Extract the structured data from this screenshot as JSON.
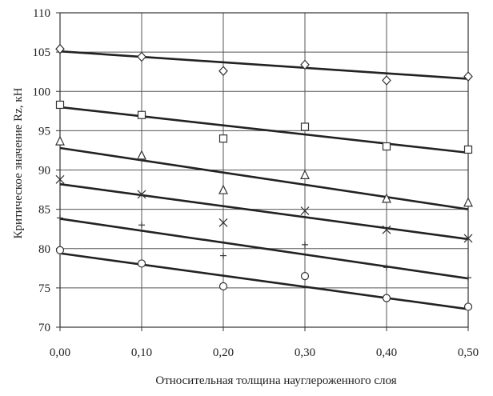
{
  "chart_data": {
    "type": "scatter",
    "title": "",
    "xlabel": "Относительная толщина науглероженного слоя",
    "ylabel": "Критическое значение Rz, кН",
    "xlim": [
      0,
      0.5
    ],
    "ylim": [
      70,
      110
    ],
    "x_ticks": [
      0,
      0.1,
      0.2,
      0.3,
      0.4,
      0.5
    ],
    "x_tick_labels": [
      "0,00",
      "0,10",
      "0,20",
      "0,30",
      "0,40",
      "0,50"
    ],
    "y_ticks": [
      70,
      75,
      80,
      85,
      90,
      95,
      100,
      105,
      110
    ],
    "y_tick_labels": [
      "70",
      "75",
      "80",
      "85",
      "90",
      "95",
      "100",
      "105",
      "110"
    ],
    "grid": true,
    "legend": "none",
    "series": [
      {
        "marker": "diamond",
        "x": [
          0,
          0.1,
          0.2,
          0.3,
          0.4,
          0.5
        ],
        "y": [
          105.4,
          104.4,
          102.6,
          103.4,
          101.4,
          101.9
        ],
        "trend": [
          105.1,
          101.6
        ]
      },
      {
        "marker": "square",
        "x": [
          0,
          0.1,
          0.2,
          0.3,
          0.4,
          0.5
        ],
        "y": [
          98.3,
          97.0,
          94.0,
          95.5,
          93.0,
          92.6
        ],
        "trend": [
          98.0,
          92.2
        ]
      },
      {
        "marker": "triangle",
        "x": [
          0,
          0.1,
          0.2,
          0.3,
          0.4,
          0.5
        ],
        "y": [
          93.6,
          91.8,
          87.4,
          89.3,
          86.3,
          85.8
        ],
        "trend": [
          92.8,
          85.0
        ]
      },
      {
        "marker": "cross",
        "x": [
          0,
          0.1,
          0.2,
          0.3,
          0.4,
          0.5
        ],
        "y": [
          88.8,
          86.9,
          83.3,
          84.8,
          82.4,
          81.3
        ],
        "trend": [
          88.2,
          81.2
        ]
      },
      {
        "marker": "plus",
        "x": [
          0,
          0.1,
          0.2,
          0.3,
          0.4,
          0.5
        ],
        "y": [
          83.9,
          83.0,
          79.1,
          80.5,
          77.6,
          76.3
        ],
        "trend": [
          83.8,
          76.2
        ]
      },
      {
        "marker": "circle",
        "x": [
          0,
          0.1,
          0.2,
          0.3,
          0.4,
          0.5
        ],
        "y": [
          79.8,
          78.1,
          75.2,
          76.5,
          73.7,
          72.6
        ],
        "trend": [
          79.4,
          72.3
        ]
      }
    ]
  }
}
